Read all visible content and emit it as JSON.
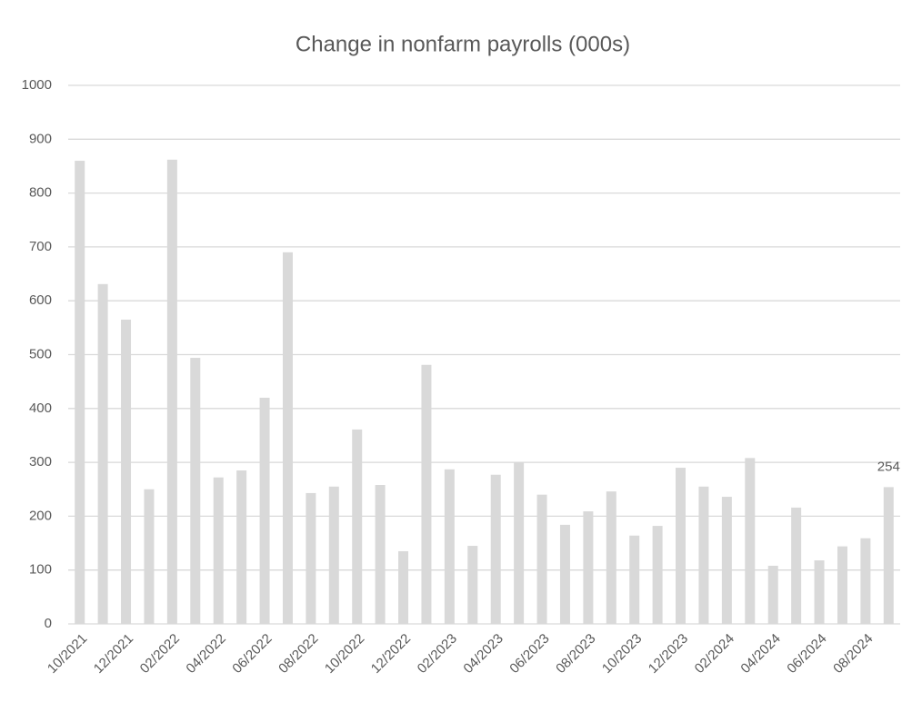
{
  "chart_data": {
    "type": "bar",
    "title": "Change in nonfarm payrolls (000s)",
    "categories": [
      "10/2021",
      null,
      "12/2021",
      null,
      "02/2022",
      null,
      "04/2022",
      null,
      "06/2022",
      null,
      "08/2022",
      null,
      "10/2022",
      null,
      "12/2022",
      null,
      "02/2023",
      null,
      "04/2023",
      null,
      "06/2023",
      null,
      "08/2023",
      null,
      "10/2023",
      null,
      "12/2023",
      null,
      "02/2024",
      null,
      "04/2024",
      null,
      "06/2024",
      null,
      "08/2024",
      null
    ],
    "values": [
      860,
      631,
      565,
      250,
      862,
      494,
      272,
      285,
      420,
      690,
      243,
      255,
      361,
      258,
      135,
      481,
      287,
      145,
      277,
      300,
      240,
      184,
      209,
      246,
      164,
      182,
      290,
      255,
      236,
      308,
      108,
      216,
      118,
      144,
      159,
      254
    ],
    "value_labels": [
      null,
      null,
      null,
      null,
      null,
      null,
      null,
      null,
      null,
      null,
      null,
      null,
      null,
      null,
      null,
      null,
      null,
      null,
      null,
      null,
      null,
      null,
      null,
      null,
      null,
      null,
      null,
      null,
      null,
      null,
      null,
      null,
      null,
      null,
      null,
      "254"
    ],
    "color": "#d9d9d9",
    "ylim": [
      0,
      1000
    ],
    "yticks": [
      0,
      100,
      200,
      300,
      400,
      500,
      600,
      700,
      800,
      900,
      1000
    ],
    "grid": true
  }
}
